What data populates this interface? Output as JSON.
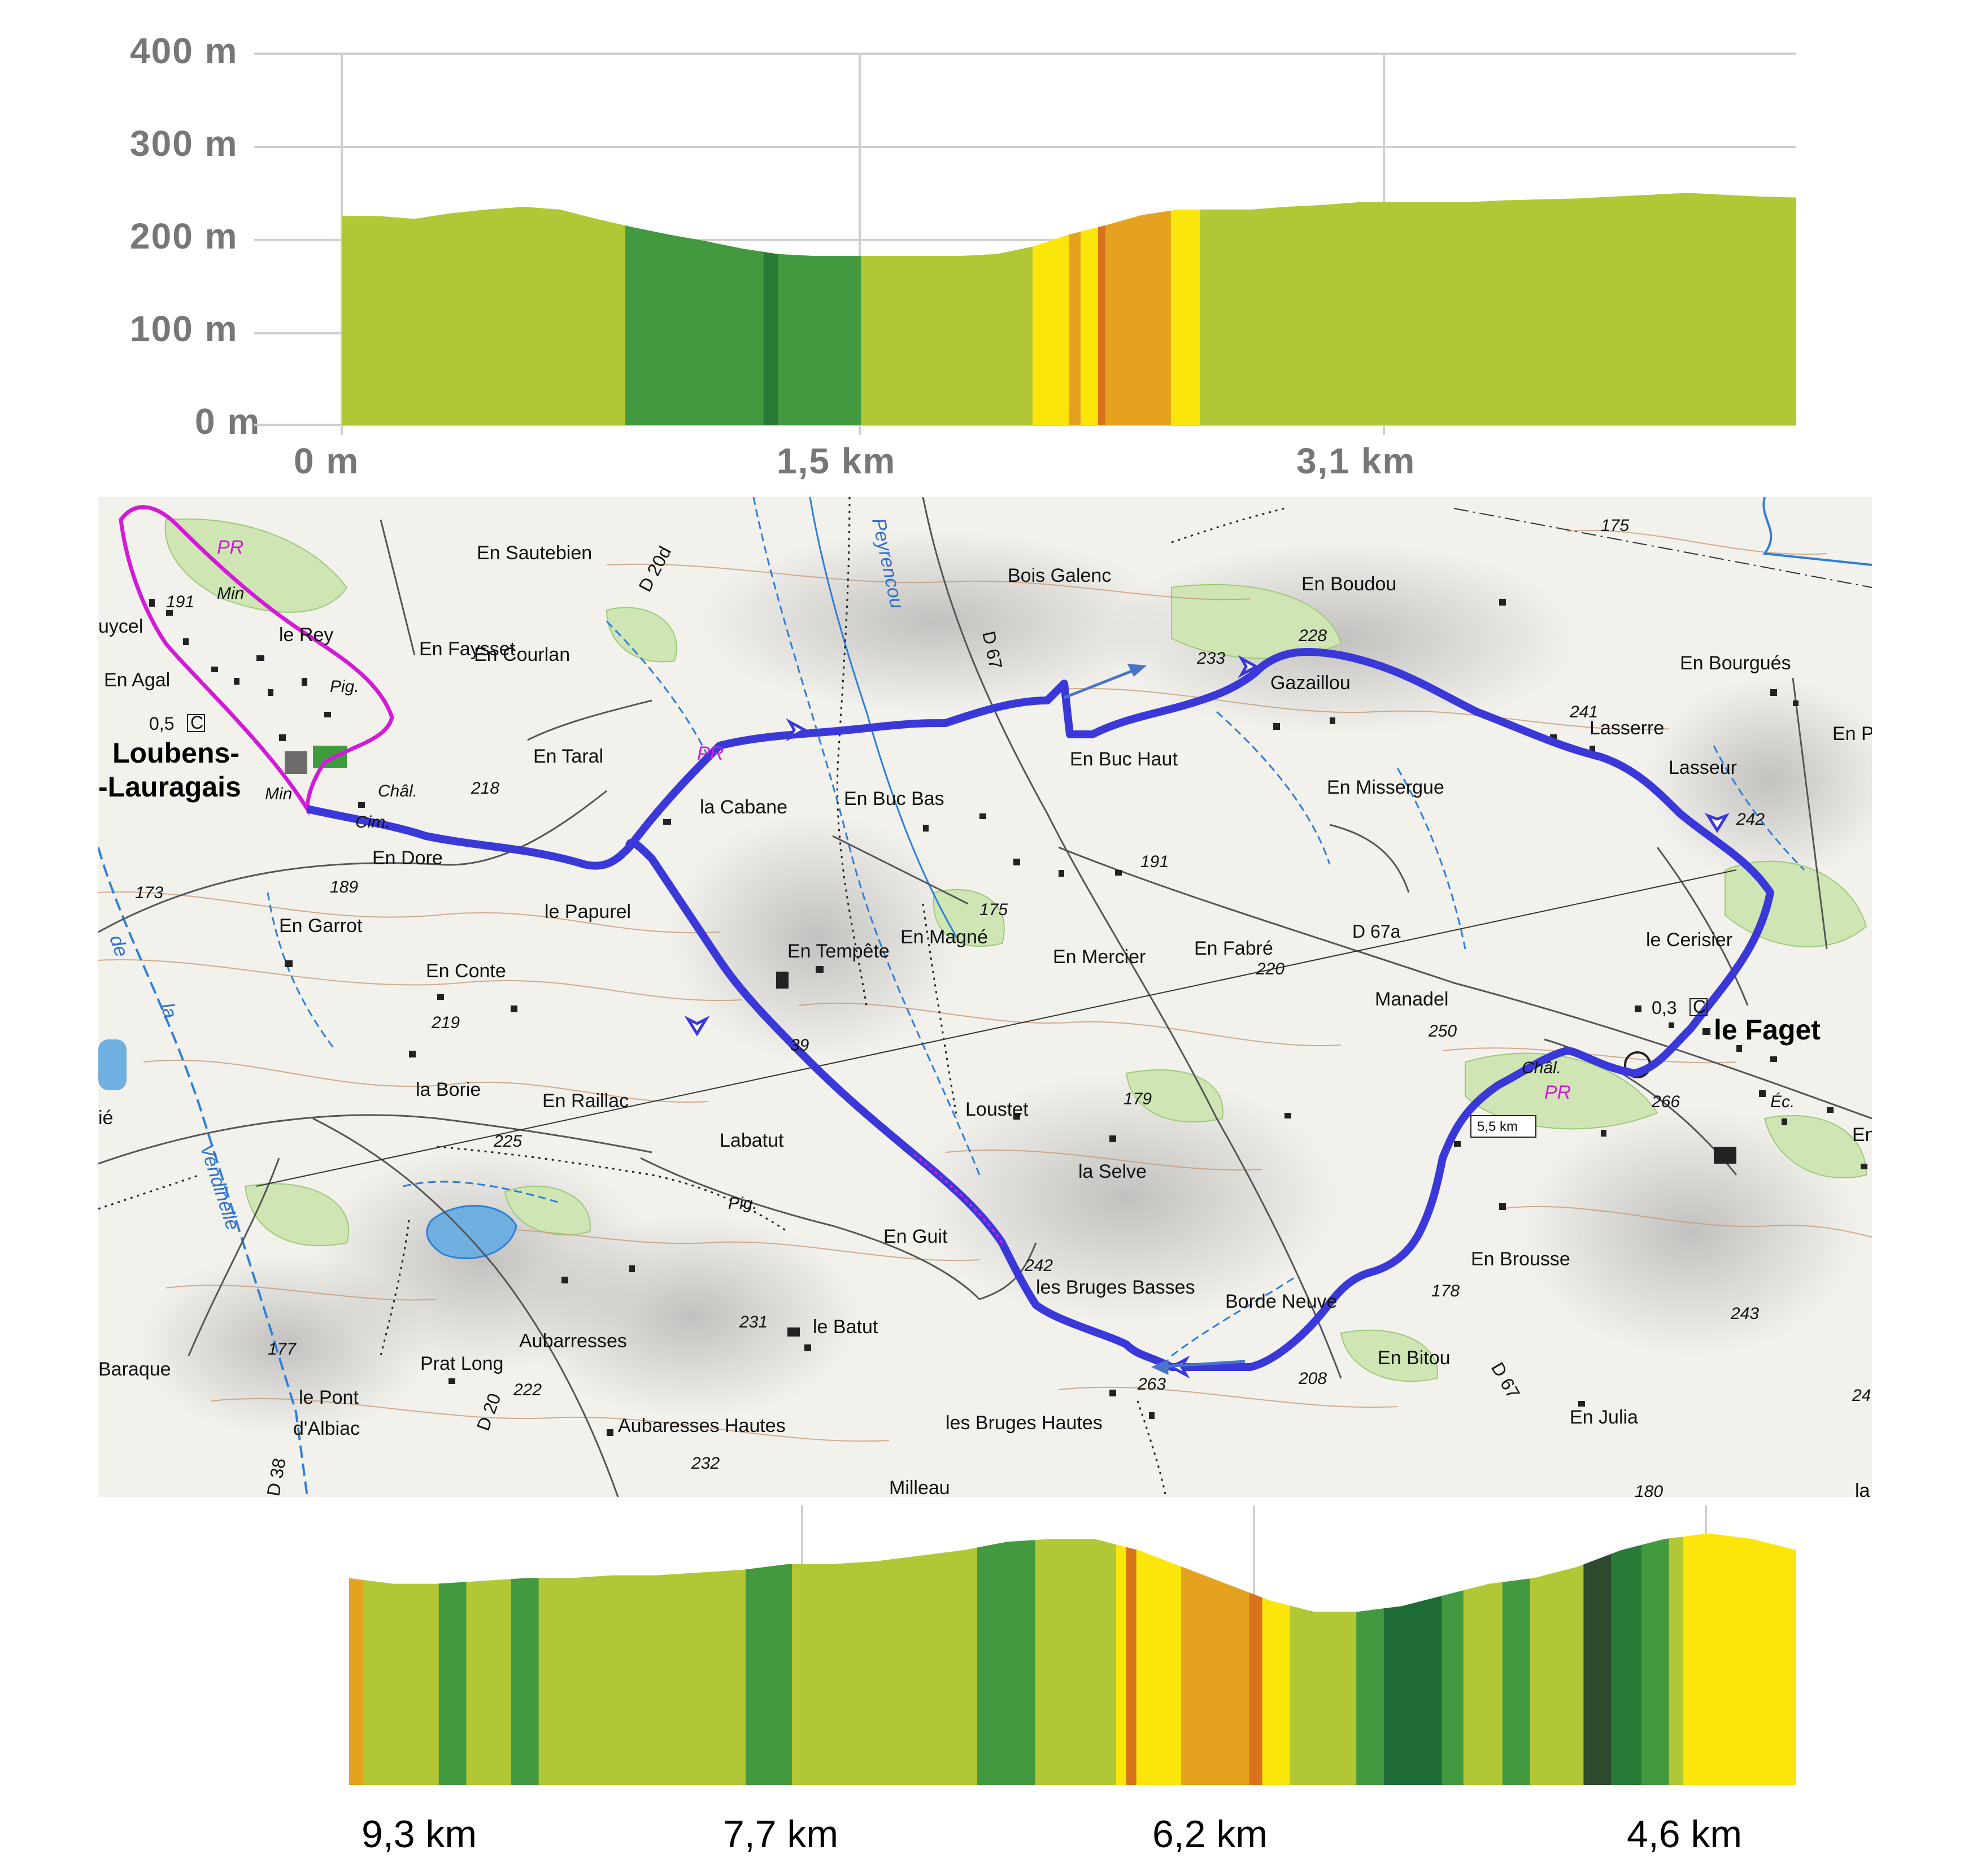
{
  "colors": {
    "lime": "#b2c735",
    "green": "#42993f",
    "dark_green": "#2a7a37",
    "darker_green": "#1f6b35",
    "very_dark": "#2d4a2e",
    "yellow": "#fbe60c",
    "orange": "#e5a21f",
    "dark_orange": "#d9721d",
    "route_blue": "#3a38d8",
    "route_pink": "#d21ad8",
    "grid": "#cfcfcf"
  },
  "top_profile": {
    "y_ticks": [
      "400 m",
      "300 m",
      "200 m",
      "100 m",
      "0 m"
    ],
    "x_ticks": [
      "0 m",
      "1,5 km",
      "3,1 km"
    ],
    "elevation_m": [
      225,
      225,
      222,
      228,
      232,
      235,
      232,
      222,
      213,
      205,
      198,
      190,
      184,
      182,
      182,
      182,
      182,
      182,
      184,
      192,
      205,
      215,
      226,
      232,
      232,
      232,
      235,
      237,
      240,
      240,
      240,
      240,
      242,
      243,
      244,
      246,
      248,
      250,
      248,
      246,
      245
    ],
    "segments": [
      {
        "to": 0.195,
        "color": "lime"
      },
      {
        "to": 0.29,
        "color": "green"
      },
      {
        "to": 0.3,
        "color": "dark_green"
      },
      {
        "to": 0.357,
        "color": "green"
      },
      {
        "to": 0.475,
        "color": "lime"
      },
      {
        "to": 0.5,
        "color": "yellow"
      },
      {
        "to": 0.508,
        "color": "orange"
      },
      {
        "to": 0.52,
        "color": "yellow"
      },
      {
        "to": 0.525,
        "color": "dark_orange"
      },
      {
        "to": 0.57,
        "color": "orange"
      },
      {
        "to": 0.59,
        "color": "yellow"
      },
      {
        "to": 1.0,
        "color": "lime"
      }
    ]
  },
  "bottom_profile": {
    "x_ticks": [
      "9,3 km",
      "7,7 km",
      "6,2 km",
      "4,6 km"
    ],
    "elevation_norm": [
      0.74,
      0.72,
      0.72,
      0.73,
      0.74,
      0.74,
      0.75,
      0.75,
      0.76,
      0.77,
      0.79,
      0.79,
      0.8,
      0.82,
      0.84,
      0.87,
      0.88,
      0.88,
      0.84,
      0.78,
      0.72,
      0.66,
      0.62,
      0.62,
      0.64,
      0.68,
      0.72,
      0.74,
      0.78,
      0.84,
      0.88,
      0.9,
      0.88,
      0.84
    ],
    "segments": [
      {
        "to": 0.01,
        "color": "orange"
      },
      {
        "to": 0.062,
        "color": "lime"
      },
      {
        "to": 0.081,
        "color": "green"
      },
      {
        "to": 0.112,
        "color": "lime"
      },
      {
        "to": 0.131,
        "color": "green"
      },
      {
        "to": 0.274,
        "color": "lime"
      },
      {
        "to": 0.306,
        "color": "green"
      },
      {
        "to": 0.434,
        "color": "lime"
      },
      {
        "to": 0.474,
        "color": "green"
      },
      {
        "to": 0.53,
        "color": "lime"
      },
      {
        "to": 0.537,
        "color": "yellow"
      },
      {
        "to": 0.544,
        "color": "dark_orange"
      },
      {
        "to": 0.575,
        "color": "yellow"
      },
      {
        "to": 0.622,
        "color": "orange"
      },
      {
        "to": 0.631,
        "color": "dark_orange"
      },
      {
        "to": 0.65,
        "color": "yellow"
      },
      {
        "to": 0.696,
        "color": "lime"
      },
      {
        "to": 0.715,
        "color": "green"
      },
      {
        "to": 0.755,
        "color": "darker_green"
      },
      {
        "to": 0.77,
        "color": "green"
      },
      {
        "to": 0.797,
        "color": "lime"
      },
      {
        "to": 0.816,
        "color": "green"
      },
      {
        "to": 0.853,
        "color": "lime"
      },
      {
        "to": 0.872,
        "color": "very_dark"
      },
      {
        "to": 0.893,
        "color": "dark_green"
      },
      {
        "to": 0.912,
        "color": "green"
      },
      {
        "to": 0.922,
        "color": "lime"
      },
      {
        "to": 1.0,
        "color": "yellow"
      }
    ]
  },
  "map": {
    "places": [
      "PR",
      "Min",
      "uycel",
      "le Rey",
      "En Faysset",
      "En Courlan",
      "En Sautebien",
      "En Agal",
      "Pig.",
      "Loubens-",
      "-Lauragais",
      "Min",
      "Châl.",
      "Cim.",
      "En Taral",
      "En Dore",
      "la Cabane",
      "PR",
      "En Buc Bas",
      "Bois Galenc",
      "En Buc Haut",
      "En Boudou",
      "Gazaillou",
      "En Missergue",
      "Lasserre",
      "Lasseur",
      "En Bourgués",
      "En P",
      "le Cerisier",
      "le Faget",
      "Châl.",
      "PR",
      "Éc.",
      "En",
      "Manadel",
      "En Fabré",
      "En Mercier",
      "En Magné",
      "En Tempête",
      "le Papurel",
      "En Garrot",
      "En Conte",
      "la Borie",
      "En Raillac",
      "Labatut",
      "Pig.",
      "Loustet",
      "la Selve",
      "En Guit",
      "les Bruges Basses",
      "Borde Neuve",
      "En Brousse",
      "En Bitou",
      "En Julia",
      "le Batut",
      "Aubarresses",
      "Prat Long",
      "Aubaresses Hautes",
      "les Bruges Hautes",
      "Milleau",
      "le Pont",
      "d'Albiac",
      "Baraque",
      "ié",
      "la",
      "Peyrencou",
      "Vendinelle",
      "la",
      "de"
    ],
    "altitudes": [
      "191",
      "218",
      "189",
      "173",
      "219",
      "225",
      "177",
      "222",
      "232",
      "231",
      "242",
      "263",
      "208",
      "178",
      "243",
      "250",
      "220",
      "191",
      "175",
      "39",
      "179",
      "266",
      "241",
      "242",
      "228",
      "233",
      "175",
      "24",
      "180"
    ],
    "roads": [
      "D 20d",
      "D 67",
      "D 67a",
      "D 67",
      "D 20",
      "D 38"
    ],
    "distance_markers": [
      "0,5",
      "0,3"
    ],
    "distance_badge": "5,5 km",
    "small_marks": [
      "C",
      "C"
    ]
  }
}
